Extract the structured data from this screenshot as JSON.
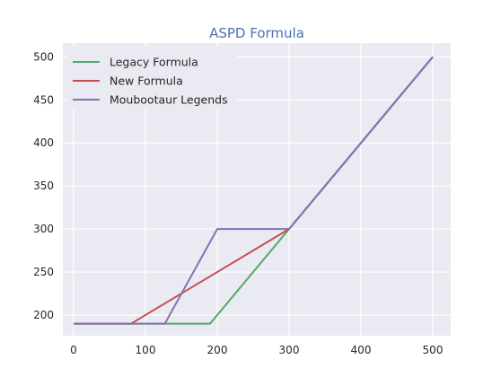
{
  "chart_data": {
    "type": "line",
    "title": "ASPD Formula",
    "xlabel": "",
    "ylabel": "",
    "xlim": [
      -15,
      525
    ],
    "ylim": [
      176,
      516
    ],
    "xticks": [
      0,
      100,
      200,
      300,
      400,
      500
    ],
    "yticks": [
      200,
      250,
      300,
      350,
      400,
      450,
      500
    ],
    "grid": true,
    "legend_position": "top-left",
    "background": "#eaeaf2",
    "series": [
      {
        "name": "Legacy Formula",
        "color": "#55a868",
        "x": [
          0,
          190,
          300,
          500
        ],
        "y": [
          190,
          190,
          300,
          500
        ]
      },
      {
        "name": "New Formula",
        "color": "#c44e52",
        "x": [
          0,
          80,
          300,
          500
        ],
        "y": [
          190,
          190,
          300,
          500
        ]
      },
      {
        "name": "Moubootaur Legends",
        "color": "#8172b2",
        "x": [
          0,
          127,
          200,
          300,
          500
        ],
        "y": [
          190,
          190,
          300,
          300,
          500
        ]
      }
    ]
  }
}
